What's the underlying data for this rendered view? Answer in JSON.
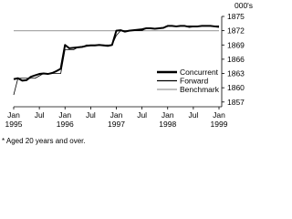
{
  "chart_data": {
    "type": "line",
    "y_unit": "000's",
    "footnote": "* Aged 20 years and over.",
    "categories": [
      "Jan 1995",
      null,
      null,
      null,
      null,
      null,
      "Jul",
      null,
      null,
      null,
      null,
      null,
      "Jan 1996",
      null,
      null,
      null,
      null,
      null,
      "Jul",
      null,
      null,
      null,
      null,
      null,
      "Jan 1997",
      null,
      null,
      null,
      null,
      null,
      "Jul",
      null,
      null,
      null,
      null,
      null,
      "Jan 1998",
      null,
      null,
      null,
      null,
      null,
      "Jul",
      null,
      null,
      null,
      null,
      null,
      "Jan 1999"
    ],
    "ylim": [
      1856,
      1875
    ],
    "yticks": [
      1857,
      1860,
      1863,
      1866,
      1869,
      1872,
      1875
    ],
    "legend": "center-right",
    "series": [
      {
        "name": "Concurrent",
        "color": "#000000",
        "width": 2,
        "values": [
          1861.8,
          1862,
          1861.5,
          1861.6,
          1862.3,
          1862.6,
          1862.9,
          1863,
          1862.9,
          1863.1,
          1863.5,
          1864,
          1869,
          1868.3,
          1868.4,
          1868.5,
          1868.6,
          1868.8,
          1868.9,
          1868.9,
          1869,
          1868.9,
          1868.8,
          1869,
          1872,
          1872.1,
          1871.8,
          1872,
          1872.1,
          1872.2,
          1872.3,
          1872.5,
          1872.5,
          1872.4,
          1872.5,
          1872.6,
          1873,
          1873,
          1872.9,
          1873,
          1873,
          1872.8,
          1872.9,
          1872.9,
          1873,
          1873,
          1873,
          1872.9,
          1872.8
        ]
      },
      {
        "name": "Forward",
        "color": "#000000",
        "width": 0.8,
        "values": [
          1858.5,
          1862,
          1862,
          1862,
          1862,
          1862,
          1862.5,
          1863,
          1863,
          1863,
          1863,
          1863,
          1868,
          1868,
          1868,
          1868.5,
          1868.5,
          1869,
          1869,
          1869,
          1869,
          1869,
          1869,
          1869,
          1871,
          1872,
          1872,
          1872,
          1872,
          1872,
          1872,
          1872.5,
          1872.5,
          1872.5,
          1872.5,
          1872.5,
          1873,
          1873,
          1873,
          1873,
          1873,
          1873,
          1873,
          1873,
          1873,
          1873,
          1873,
          1873,
          1873
        ]
      },
      {
        "name": "Benchmark",
        "color": "#aaaaaa",
        "width": 1.2,
        "values": [
          1872,
          1872,
          1872,
          1872,
          1872,
          1872,
          1872,
          1872,
          1872,
          1872,
          1872,
          1872,
          1872,
          1872,
          1872,
          1872,
          1872,
          1872,
          1872,
          1872,
          1872,
          1872,
          1872,
          1872,
          1872,
          1872,
          1872,
          1872,
          1872,
          1872,
          1872,
          1872,
          1872,
          1872,
          1872,
          1872,
          1872,
          1872,
          1872,
          1872,
          1872,
          1872,
          1872,
          1872,
          1872,
          1872,
          1872,
          1872,
          1872
        ]
      }
    ]
  }
}
